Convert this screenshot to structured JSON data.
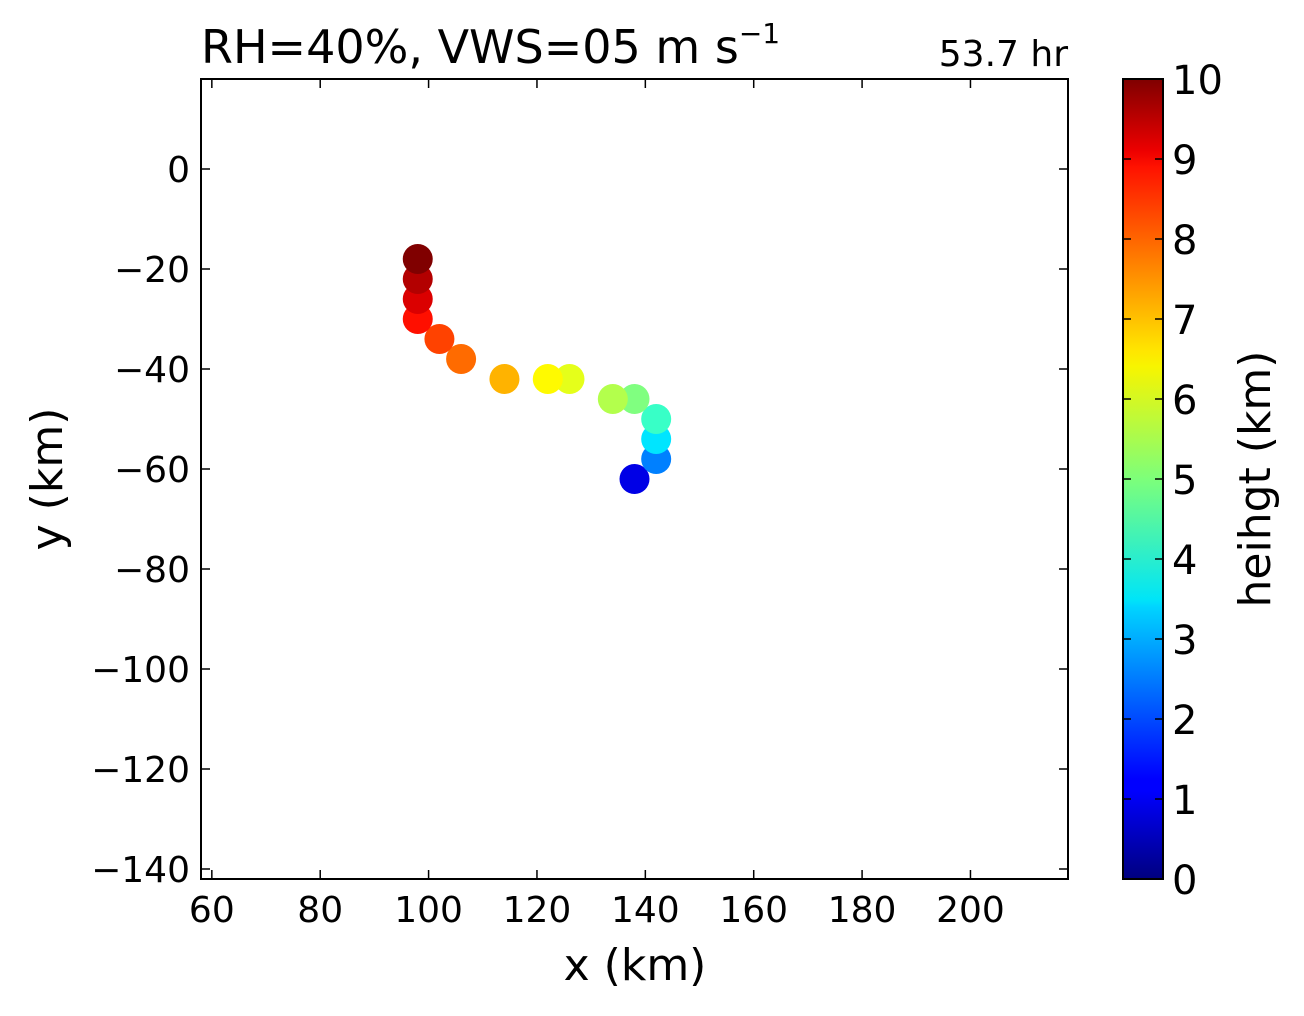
{
  "chart_data": {
    "type": "scatter",
    "title": "RH=40%, VWS=05 m s",
    "title_superscript": "−1",
    "annotation": "53.7 hr",
    "annotation_color": "#0000ff",
    "xlabel": "x (km)",
    "ylabel": "y (km)",
    "xlim": [
      58,
      218
    ],
    "ylim": [
      -142,
      18
    ],
    "xticks": [
      60,
      80,
      100,
      120,
      140,
      160,
      180,
      200
    ],
    "xtick_labels": [
      "60",
      "80",
      "100",
      "120",
      "140",
      "160",
      "180",
      "200"
    ],
    "yticks": [
      0,
      -20,
      -40,
      -60,
      -80,
      -100,
      -120,
      -140
    ],
    "ytick_labels": [
      "0",
      "−20",
      "−40",
      "−60",
      "−80",
      "−100",
      "−120",
      "−140"
    ],
    "grid": false,
    "colormap": "jet",
    "colorbar": {
      "label": "heihgt (km)",
      "range": [
        0,
        10
      ],
      "ticks": [
        0,
        1,
        2,
        3,
        4,
        5,
        6,
        7,
        8,
        9,
        10
      ],
      "tick_labels": [
        "0",
        "1",
        "2",
        "3",
        "4",
        "5",
        "6",
        "7",
        "8",
        "9",
        "10"
      ]
    },
    "points": [
      {
        "x": 138,
        "y": -62,
        "height": 1.0
      },
      {
        "x": 142,
        "y": -58,
        "height": 2.5
      },
      {
        "x": 142,
        "y": -54,
        "height": 3.5
      },
      {
        "x": 142,
        "y": -50,
        "height": 4.3
      },
      {
        "x": 138,
        "y": -46,
        "height": 5.0
      },
      {
        "x": 134,
        "y": -46,
        "height": 5.5
      },
      {
        "x": 126,
        "y": -42,
        "height": 6.0
      },
      {
        "x": 122,
        "y": -42,
        "height": 6.3
      },
      {
        "x": 114,
        "y": -42,
        "height": 7.0
      },
      {
        "x": 106,
        "y": -38,
        "height": 7.7
      },
      {
        "x": 102,
        "y": -34,
        "height": 8.1
      },
      {
        "x": 98,
        "y": -30,
        "height": 8.6
      },
      {
        "x": 98,
        "y": -26,
        "height": 9.1
      },
      {
        "x": 98,
        "y": -22,
        "height": 9.5
      },
      {
        "x": 98,
        "y": -18,
        "height": 10.0
      }
    ]
  }
}
